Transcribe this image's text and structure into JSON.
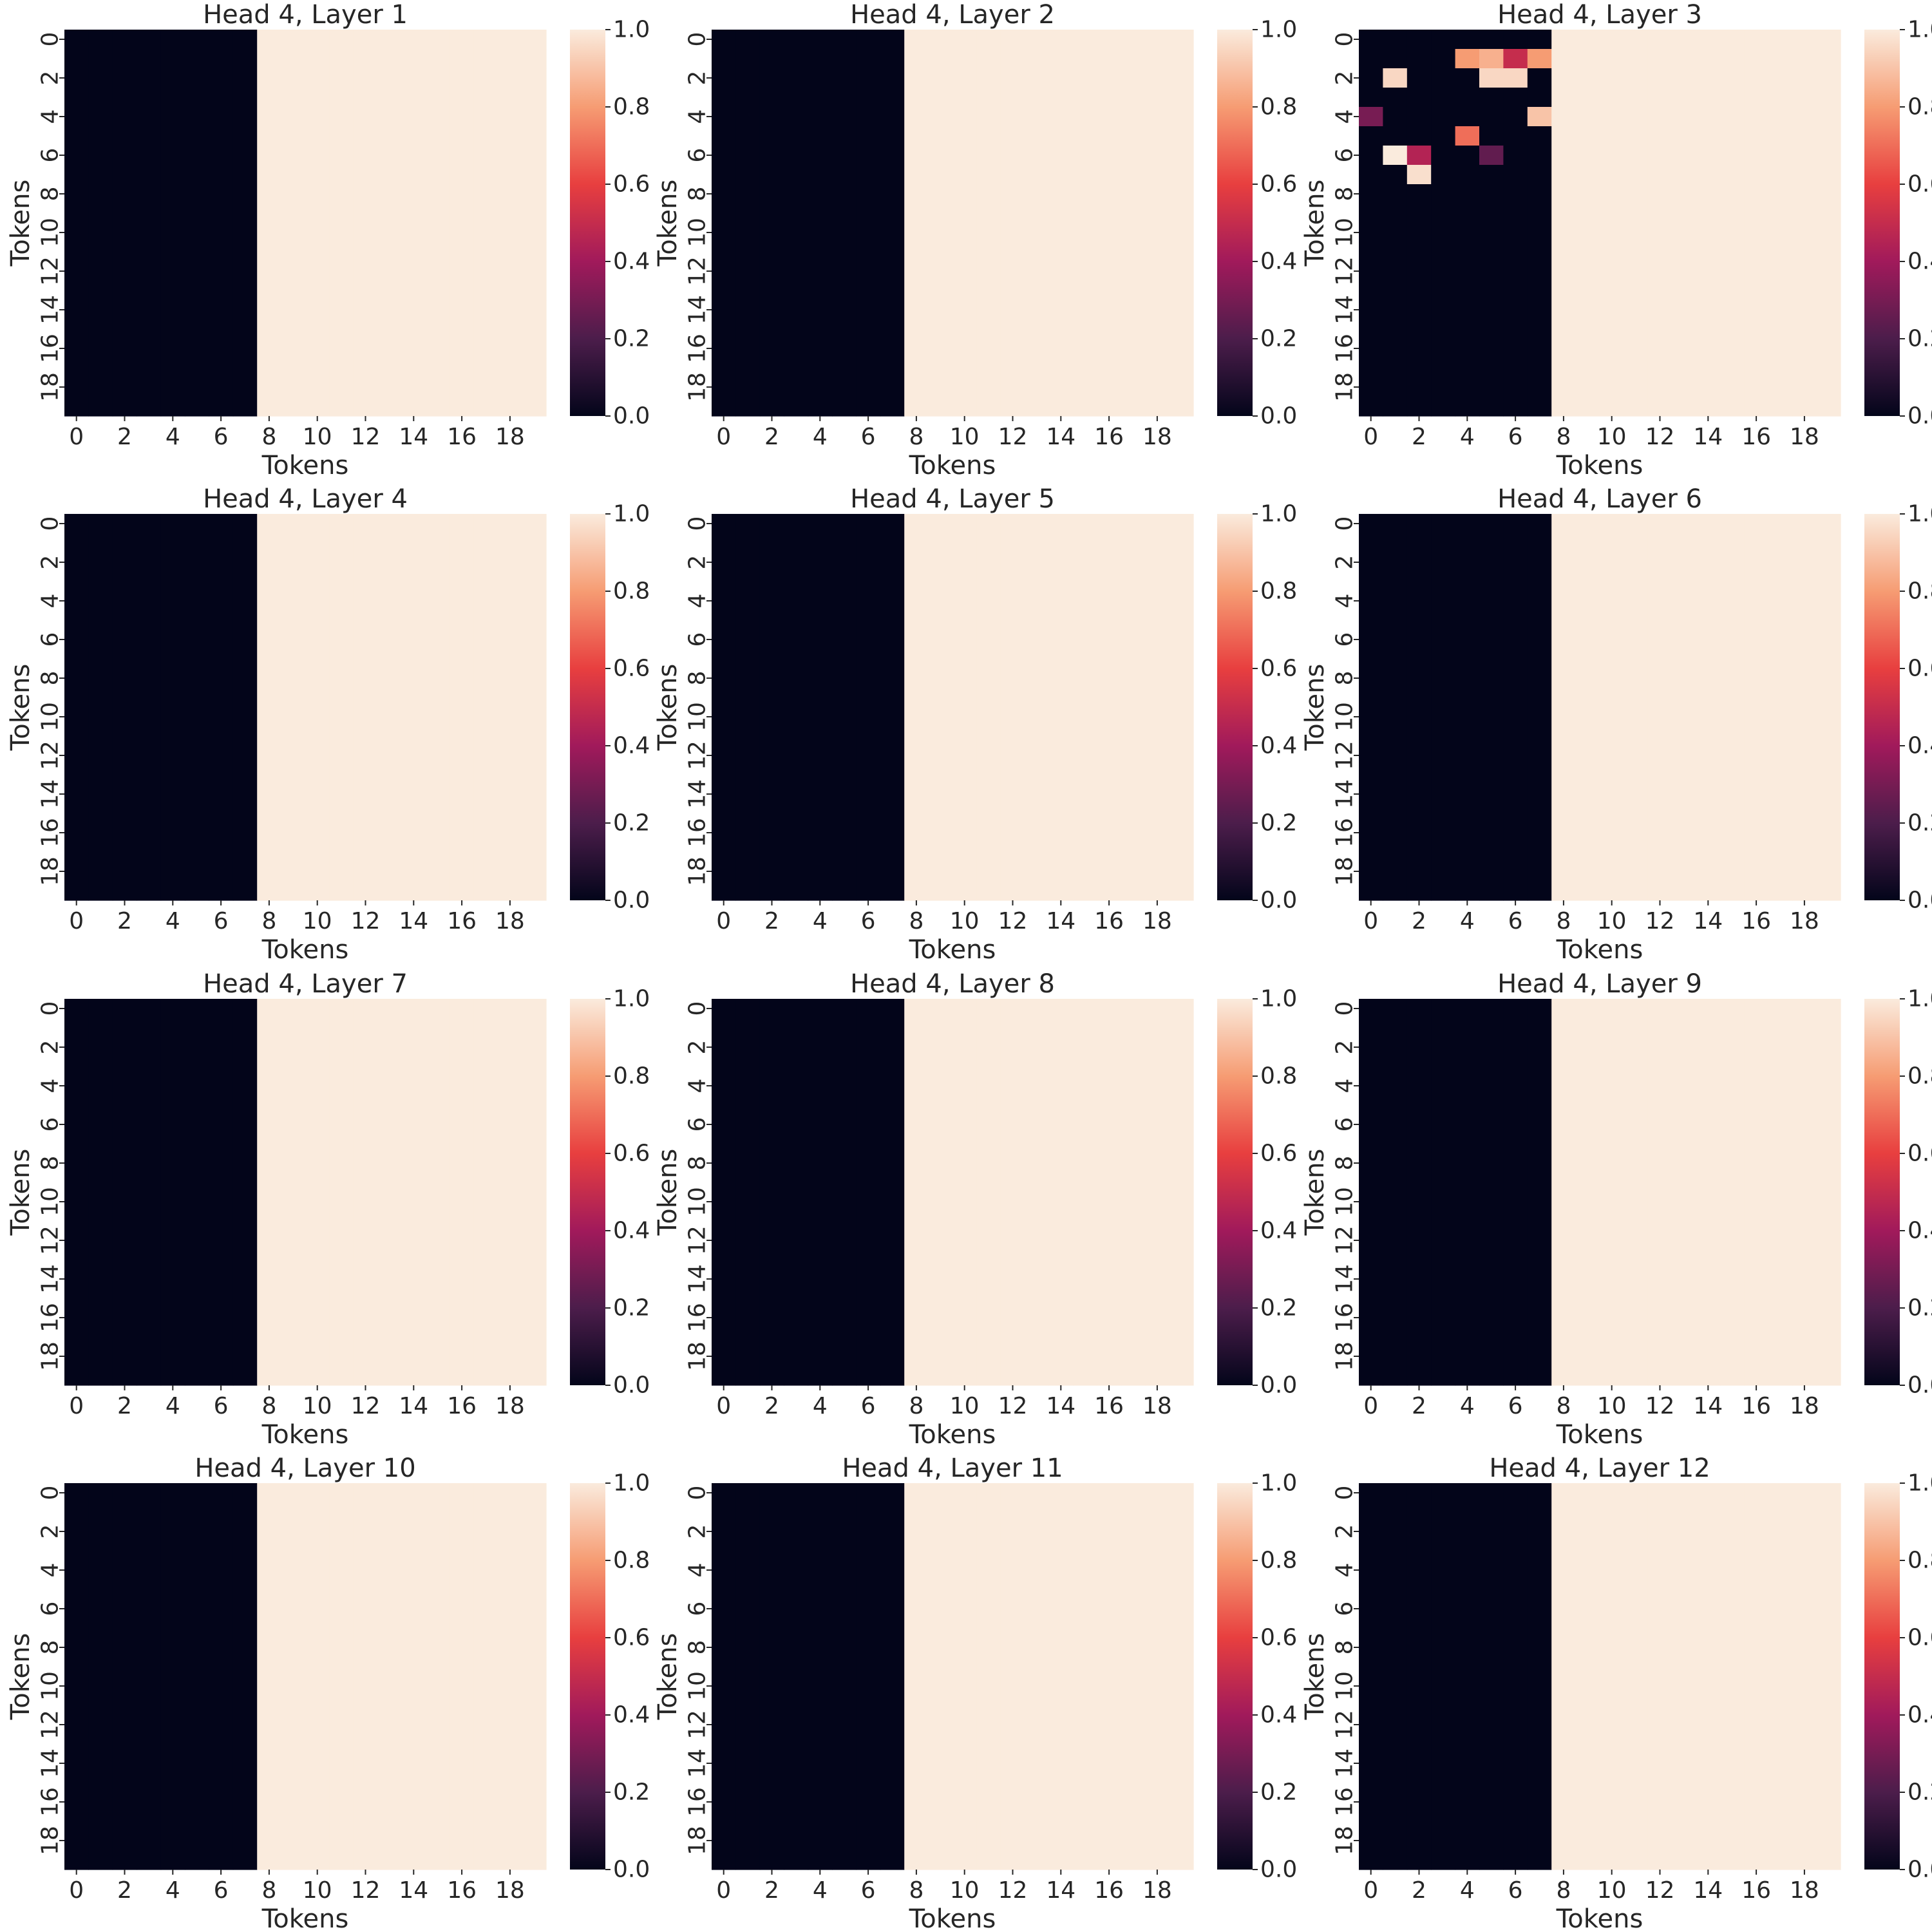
{
  "colorbar": {
    "ticks": [
      "0.0",
      "0.2",
      "0.4",
      "0.6",
      "0.8",
      "1.0"
    ],
    "colormap": "rocket",
    "colors": [
      "#03051a",
      "#4c1d4b",
      "#a11a5b",
      "#e83f3f",
      "#f69c73",
      "#faebdd"
    ]
  },
  "chart_data": [
    {
      "type": "heatmap",
      "title": "Head 4, Layer 1",
      "xlabel": "Tokens",
      "ylabel": "Tokens",
      "x_ticks": [
        "0",
        "2",
        "4",
        "6",
        "8",
        "10",
        "12",
        "14",
        "16",
        "18"
      ],
      "y_ticks": [
        "0",
        "2",
        "4",
        "6",
        "8",
        "10",
        "12",
        "14",
        "16",
        "18"
      ],
      "vmin": 0,
      "vmax": 1,
      "rows": 20,
      "cols": 20,
      "pattern": "columns 0-7 = 0.0, columns 8-19 = 1.0",
      "base_columns": [
        0,
        0,
        0,
        0,
        0,
        0,
        0,
        0,
        1,
        1,
        1,
        1,
        1,
        1,
        1,
        1,
        1,
        1,
        1,
        1
      ],
      "overrides": []
    },
    {
      "type": "heatmap",
      "title": "Head 4, Layer 2",
      "xlabel": "Tokens",
      "ylabel": "Tokens",
      "x_ticks": [
        "0",
        "2",
        "4",
        "6",
        "8",
        "10",
        "12",
        "14",
        "16",
        "18"
      ],
      "y_ticks": [
        "0",
        "2",
        "4",
        "6",
        "8",
        "10",
        "12",
        "14",
        "16",
        "18"
      ],
      "vmin": 0,
      "vmax": 1,
      "rows": 20,
      "cols": 20,
      "pattern": "columns 0-7 = 0.0, columns 8-19 = 1.0",
      "base_columns": [
        0,
        0,
        0,
        0,
        0,
        0,
        0,
        0,
        1,
        1,
        1,
        1,
        1,
        1,
        1,
        1,
        1,
        1,
        1,
        1
      ],
      "overrides": []
    },
    {
      "type": "heatmap",
      "title": "Head 4, Layer 3",
      "xlabel": "Tokens",
      "ylabel": "Tokens",
      "x_ticks": [
        "0",
        "2",
        "4",
        "6",
        "8",
        "10",
        "12",
        "14",
        "16",
        "18"
      ],
      "y_ticks": [
        "0",
        "2",
        "4",
        "6",
        "8",
        "10",
        "12",
        "14",
        "16",
        "18"
      ],
      "vmin": 0,
      "vmax": 1,
      "rows": 20,
      "cols": 20,
      "pattern": "columns 0-7 = 0.0, columns 8-19 = 1.0, with scattered nonzero cells in columns 0-7",
      "base_columns": [
        0,
        0,
        0,
        0,
        0,
        0,
        0,
        0,
        1,
        1,
        1,
        1,
        1,
        1,
        1,
        1,
        1,
        1,
        1,
        1
      ],
      "overrides": [
        {
          "row": 1,
          "col": 4,
          "value": 0.8
        },
        {
          "row": 1,
          "col": 5,
          "value": 0.85
        },
        {
          "row": 1,
          "col": 6,
          "value": 0.5
        },
        {
          "row": 1,
          "col": 7,
          "value": 0.8
        },
        {
          "row": 2,
          "col": 1,
          "value": 0.95
        },
        {
          "row": 2,
          "col": 5,
          "value": 0.95
        },
        {
          "row": 2,
          "col": 6,
          "value": 0.95
        },
        {
          "row": 4,
          "col": 0,
          "value": 0.3
        },
        {
          "row": 4,
          "col": 7,
          "value": 0.9
        },
        {
          "row": 5,
          "col": 4,
          "value": 0.7
        },
        {
          "row": 6,
          "col": 1,
          "value": 1.0
        },
        {
          "row": 6,
          "col": 2,
          "value": 0.45
        },
        {
          "row": 6,
          "col": 5,
          "value": 0.25
        },
        {
          "row": 7,
          "col": 2,
          "value": 0.97
        }
      ]
    },
    {
      "type": "heatmap",
      "title": "Head 4, Layer 4",
      "xlabel": "Tokens",
      "ylabel": "Tokens",
      "x_ticks": [
        "0",
        "2",
        "4",
        "6",
        "8",
        "10",
        "12",
        "14",
        "16",
        "18"
      ],
      "y_ticks": [
        "0",
        "2",
        "4",
        "6",
        "8",
        "10",
        "12",
        "14",
        "16",
        "18"
      ],
      "vmin": 0,
      "vmax": 1,
      "rows": 20,
      "cols": 20,
      "pattern": "columns 0-7 = 0.0, columns 8-19 = 1.0",
      "base_columns": [
        0,
        0,
        0,
        0,
        0,
        0,
        0,
        0,
        1,
        1,
        1,
        1,
        1,
        1,
        1,
        1,
        1,
        1,
        1,
        1
      ],
      "overrides": []
    },
    {
      "type": "heatmap",
      "title": "Head 4, Layer 5",
      "xlabel": "Tokens",
      "ylabel": "Tokens",
      "x_ticks": [
        "0",
        "2",
        "4",
        "6",
        "8",
        "10",
        "12",
        "14",
        "16",
        "18"
      ],
      "y_ticks": [
        "0",
        "2",
        "4",
        "6",
        "8",
        "10",
        "12",
        "14",
        "16",
        "18"
      ],
      "vmin": 0,
      "vmax": 1,
      "rows": 20,
      "cols": 20,
      "pattern": "columns 0-7 = 0.0, columns 8-19 = 1.0",
      "base_columns": [
        0,
        0,
        0,
        0,
        0,
        0,
        0,
        0,
        1,
        1,
        1,
        1,
        1,
        1,
        1,
        1,
        1,
        1,
        1,
        1
      ],
      "overrides": []
    },
    {
      "type": "heatmap",
      "title": "Head 4, Layer 6",
      "xlabel": "Tokens",
      "ylabel": "Tokens",
      "x_ticks": [
        "0",
        "2",
        "4",
        "6",
        "8",
        "10",
        "12",
        "14",
        "16",
        "18"
      ],
      "y_ticks": [
        "0",
        "2",
        "4",
        "6",
        "8",
        "10",
        "12",
        "14",
        "16",
        "18"
      ],
      "vmin": 0,
      "vmax": 1,
      "rows": 20,
      "cols": 20,
      "pattern": "columns 0-7 = 0.0, columns 8-19 = 1.0",
      "base_columns": [
        0,
        0,
        0,
        0,
        0,
        0,
        0,
        0,
        1,
        1,
        1,
        1,
        1,
        1,
        1,
        1,
        1,
        1,
        1,
        1
      ],
      "overrides": []
    },
    {
      "type": "heatmap",
      "title": "Head 4, Layer 7",
      "xlabel": "Tokens",
      "ylabel": "Tokens",
      "x_ticks": [
        "0",
        "2",
        "4",
        "6",
        "8",
        "10",
        "12",
        "14",
        "16",
        "18"
      ],
      "y_ticks": [
        "0",
        "2",
        "4",
        "6",
        "8",
        "10",
        "12",
        "14",
        "16",
        "18"
      ],
      "vmin": 0,
      "vmax": 1,
      "rows": 20,
      "cols": 20,
      "pattern": "columns 0-7 = 0.0, columns 8-19 = 1.0",
      "base_columns": [
        0,
        0,
        0,
        0,
        0,
        0,
        0,
        0,
        1,
        1,
        1,
        1,
        1,
        1,
        1,
        1,
        1,
        1,
        1,
        1
      ],
      "overrides": []
    },
    {
      "type": "heatmap",
      "title": "Head 4, Layer 8",
      "xlabel": "Tokens",
      "ylabel": "Tokens",
      "x_ticks": [
        "0",
        "2",
        "4",
        "6",
        "8",
        "10",
        "12",
        "14",
        "16",
        "18"
      ],
      "y_ticks": [
        "0",
        "2",
        "4",
        "6",
        "8",
        "10",
        "12",
        "14",
        "16",
        "18"
      ],
      "vmin": 0,
      "vmax": 1,
      "rows": 20,
      "cols": 20,
      "pattern": "columns 0-7 = 0.0, columns 8-19 = 1.0",
      "base_columns": [
        0,
        0,
        0,
        0,
        0,
        0,
        0,
        0,
        1,
        1,
        1,
        1,
        1,
        1,
        1,
        1,
        1,
        1,
        1,
        1
      ],
      "overrides": []
    },
    {
      "type": "heatmap",
      "title": "Head 4, Layer 9",
      "xlabel": "Tokens",
      "ylabel": "Tokens",
      "x_ticks": [
        "0",
        "2",
        "4",
        "6",
        "8",
        "10",
        "12",
        "14",
        "16",
        "18"
      ],
      "y_ticks": [
        "0",
        "2",
        "4",
        "6",
        "8",
        "10",
        "12",
        "14",
        "16",
        "18"
      ],
      "vmin": 0,
      "vmax": 1,
      "rows": 20,
      "cols": 20,
      "pattern": "columns 0-7 = 0.0, columns 8-19 = 1.0",
      "base_columns": [
        0,
        0,
        0,
        0,
        0,
        0,
        0,
        0,
        1,
        1,
        1,
        1,
        1,
        1,
        1,
        1,
        1,
        1,
        1,
        1
      ],
      "overrides": []
    },
    {
      "type": "heatmap",
      "title": "Head 4, Layer 10",
      "xlabel": "Tokens",
      "ylabel": "Tokens",
      "x_ticks": [
        "0",
        "2",
        "4",
        "6",
        "8",
        "10",
        "12",
        "14",
        "16",
        "18"
      ],
      "y_ticks": [
        "0",
        "2",
        "4",
        "6",
        "8",
        "10",
        "12",
        "14",
        "16",
        "18"
      ],
      "vmin": 0,
      "vmax": 1,
      "rows": 20,
      "cols": 20,
      "pattern": "columns 0-7 = 0.0, columns 8-19 = 1.0",
      "base_columns": [
        0,
        0,
        0,
        0,
        0,
        0,
        0,
        0,
        1,
        1,
        1,
        1,
        1,
        1,
        1,
        1,
        1,
        1,
        1,
        1
      ],
      "overrides": []
    },
    {
      "type": "heatmap",
      "title": "Head 4, Layer 11",
      "xlabel": "Tokens",
      "ylabel": "Tokens",
      "x_ticks": [
        "0",
        "2",
        "4",
        "6",
        "8",
        "10",
        "12",
        "14",
        "16",
        "18"
      ],
      "y_ticks": [
        "0",
        "2",
        "4",
        "6",
        "8",
        "10",
        "12",
        "14",
        "16",
        "18"
      ],
      "vmin": 0,
      "vmax": 1,
      "rows": 20,
      "cols": 20,
      "pattern": "columns 0-7 = 0.0, columns 8-19 = 1.0",
      "base_columns": [
        0,
        0,
        0,
        0,
        0,
        0,
        0,
        0,
        1,
        1,
        1,
        1,
        1,
        1,
        1,
        1,
        1,
        1,
        1,
        1
      ],
      "overrides": []
    },
    {
      "type": "heatmap",
      "title": "Head 4, Layer 12",
      "xlabel": "Tokens",
      "ylabel": "Tokens",
      "x_ticks": [
        "0",
        "2",
        "4",
        "6",
        "8",
        "10",
        "12",
        "14",
        "16",
        "18"
      ],
      "y_ticks": [
        "0",
        "2",
        "4",
        "6",
        "8",
        "10",
        "12",
        "14",
        "16",
        "18"
      ],
      "vmin": 0,
      "vmax": 1,
      "rows": 20,
      "cols": 20,
      "pattern": "columns 0-7 = 0.0, columns 8-19 = 1.0",
      "base_columns": [
        0,
        0,
        0,
        0,
        0,
        0,
        0,
        0,
        1,
        1,
        1,
        1,
        1,
        1,
        1,
        1,
        1,
        1,
        1,
        1
      ],
      "overrides": []
    }
  ]
}
